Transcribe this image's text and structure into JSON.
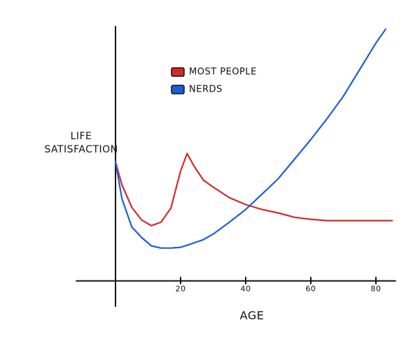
{
  "chart_data": {
    "type": "line",
    "xlabel": "AGE",
    "ylabel": "LIFE SATISFACTION",
    "x": [
      0,
      2,
      5,
      8,
      11,
      14,
      17,
      20,
      22,
      24,
      27,
      30,
      35,
      40,
      45,
      50,
      55,
      60,
      65,
      70,
      75,
      80,
      83,
      85
    ],
    "series": [
      {
        "name": "MOST PEOPLE",
        "color": "#d42a2a",
        "values": [
          46.8,
          37.7,
          28.9,
          24.0,
          21.7,
          23.1,
          28.6,
          43.2,
          50.1,
          45.4,
          39.6,
          36.9,
          32.7,
          30.0,
          28.1,
          26.7,
          25.0,
          24.2,
          23.7,
          23.7,
          23.7,
          23.7,
          23.7,
          23.7
        ]
      },
      {
        "name": "NERDS",
        "color": "#1a5fd6",
        "values": [
          46.8,
          32.2,
          21.2,
          17.1,
          13.8,
          12.9,
          12.9,
          13.2,
          14.0,
          14.9,
          16.2,
          18.4,
          23.1,
          28.1,
          34.1,
          40.2,
          47.9,
          55.6,
          63.8,
          72.6,
          83.1,
          93.5,
          99.0,
          null
        ]
      }
    ],
    "xlim": [
      -12,
      86
    ],
    "xticks": [
      20,
      40,
      60,
      80
    ],
    "ylim": [
      -10,
      100
    ],
    "grid": false
  }
}
